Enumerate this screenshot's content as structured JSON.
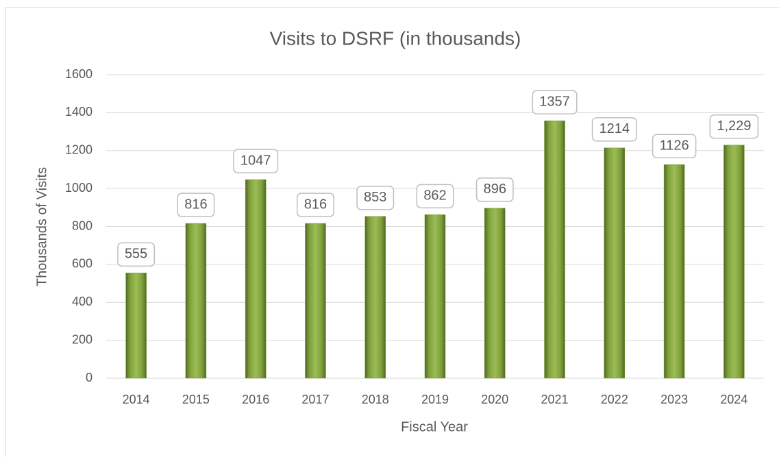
{
  "chart_data": {
    "type": "bar",
    "title": "Visits to DSRF (in thousands)",
    "x_label": "Fiscal Year",
    "y_label": "Thousands of Visits",
    "categories": [
      "2014",
      "2015",
      "2016",
      "2017",
      "2018",
      "2019",
      "2020",
      "2021",
      "2022",
      "2023",
      "2024"
    ],
    "values": [
      555,
      816,
      1047,
      816,
      853,
      862,
      896,
      1357,
      1214,
      1126,
      1229
    ],
    "value_labels": [
      "555",
      "816",
      "1047",
      "816",
      "853",
      "862",
      "896",
      "1357",
      "1214",
      "1126",
      "1,229"
    ],
    "color": "#7a9a3a",
    "ylim": [
      0,
      1600
    ],
    "yticks": [
      0,
      200,
      400,
      600,
      800,
      1000,
      1200,
      1400,
      1600
    ],
    "grid": true
  }
}
